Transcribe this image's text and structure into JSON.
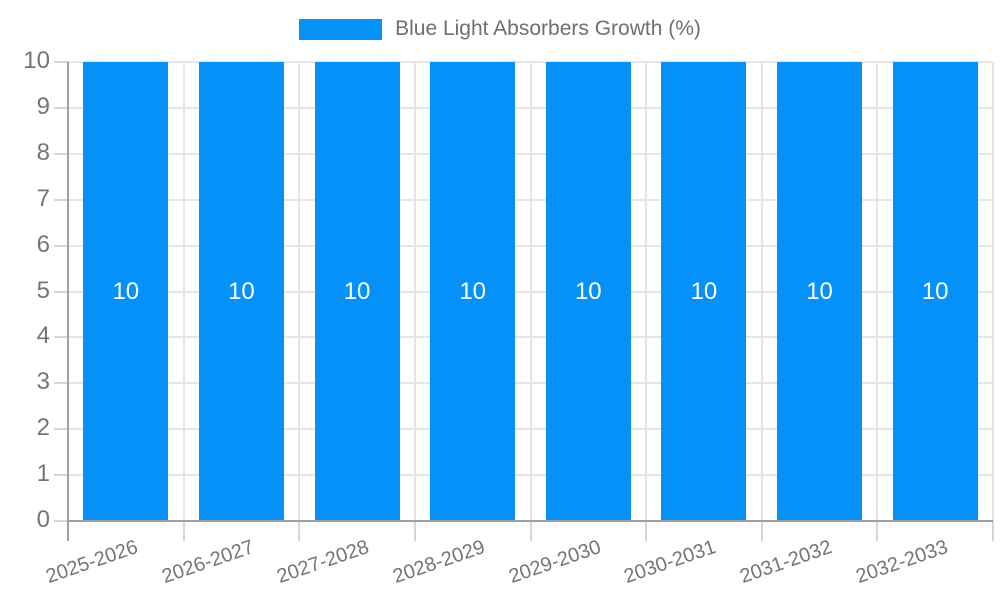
{
  "chart_data": {
    "type": "bar",
    "title": "",
    "legend": {
      "label": "Blue Light Absorbers Growth (%)",
      "position": "top-center",
      "swatch": "rect"
    },
    "categories": [
      "2025-2026",
      "2026-2027",
      "2027-2028",
      "2028-2029",
      "2029-2030",
      "2030-2031",
      "2031-2032",
      "2032-2033"
    ],
    "series": [
      {
        "name": "Blue Light Absorbers Growth (%)",
        "values": [
          10,
          10,
          10,
          10,
          10,
          10,
          10,
          10
        ]
      }
    ],
    "bar_value_labels": [
      "10",
      "10",
      "10",
      "10",
      "10",
      "10",
      "10",
      "10"
    ],
    "xlabel": "",
    "ylabel": "",
    "ylim": [
      0,
      10
    ],
    "yticks": [
      0,
      1,
      2,
      3,
      4,
      5,
      6,
      7,
      8,
      9,
      10
    ],
    "grid": true,
    "x_label_rotation_deg": -19,
    "colors": {
      "bar": "#0591f8",
      "bar_label": "#ffffff",
      "axis_text": "#757575",
      "axis_line": "#a0a0a0",
      "gridline": "#e6e6e6",
      "tick": "#d6d6d6",
      "background": "#ffffff"
    }
  }
}
